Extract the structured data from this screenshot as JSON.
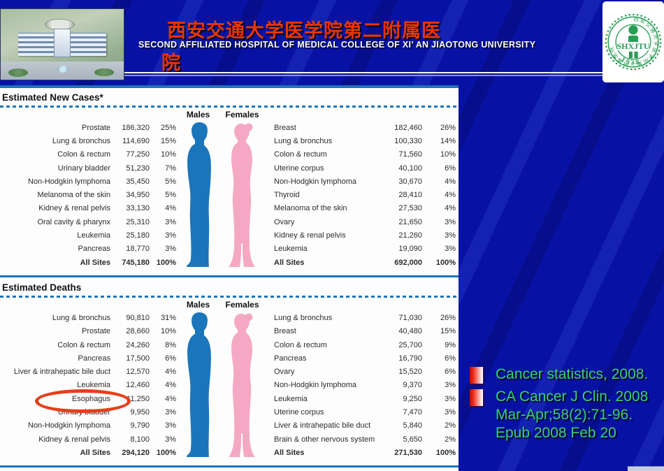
{
  "slide": {
    "header": {
      "title_cn_line1": "西安交通大学医学院第二附属医",
      "title_cn_line2": "院",
      "subtitle_en": "SECOND AFFILIATED HOSPITAL OF MEDICAL COLLEGE OF XI’ AN JIAOTONG UNIVERSITY",
      "logo": {
        "rim_text": "西安交通大学医学院第二附属医院",
        "abbr": "SHXJTU",
        "year": "1938"
      }
    },
    "figure": {
      "sections": [
        {
          "title": "Estimated New Cases*",
          "males_header": "Males",
          "females_header": "Females",
          "males_rows": [
            {
              "site": "Prostate",
              "count": "186,320",
              "pct": "25%"
            },
            {
              "site": "Lung & bronchus",
              "count": "114,690",
              "pct": "15%"
            },
            {
              "site": "Colon & rectum",
              "count": "77,250",
              "pct": "10%"
            },
            {
              "site": "Urinary bladder",
              "count": "51,230",
              "pct": "7%"
            },
            {
              "site": "Non-Hodgkin lymphoma",
              "count": "35,450",
              "pct": "5%"
            },
            {
              "site": "Melanoma of the skin",
              "count": "34,950",
              "pct": "5%"
            },
            {
              "site": "Kidney & renal pelvis",
              "count": "33,130",
              "pct": "4%"
            },
            {
              "site": "Oral cavity & pharynx",
              "count": "25,310",
              "pct": "3%"
            },
            {
              "site": "Leukemia",
              "count": "25,180",
              "pct": "3%"
            },
            {
              "site": "Pancreas",
              "count": "18,770",
              "pct": "3%"
            },
            {
              "site": "All Sites",
              "count": "745,180",
              "pct": "100%",
              "bold": true
            }
          ],
          "females_rows": [
            {
              "site": "Breast",
              "count": "182,460",
              "pct": "26%"
            },
            {
              "site": "Lung & bronchus",
              "count": "100,330",
              "pct": "14%"
            },
            {
              "site": "Colon & rectum",
              "count": "71,560",
              "pct": "10%"
            },
            {
              "site": "Uterine corpus",
              "count": "40,100",
              "pct": "6%"
            },
            {
              "site": "Non-Hodgkin lymphoma",
              "count": "30,670",
              "pct": "4%"
            },
            {
              "site": "Thyroid",
              "count": "28,410",
              "pct": "4%"
            },
            {
              "site": "Melanoma of the skin",
              "count": "27,530",
              "pct": "4%"
            },
            {
              "site": "Ovary",
              "count": "21,650",
              "pct": "3%"
            },
            {
              "site": "Kidney & renal pelvis",
              "count": "21,260",
              "pct": "3%"
            },
            {
              "site": "Leukemia",
              "count": "19,090",
              "pct": "3%"
            },
            {
              "site": "All Sites",
              "count": "692,000",
              "pct": "100%",
              "bold": true
            }
          ]
        },
        {
          "title": "Estimated Deaths",
          "males_header": "Males",
          "females_header": "Females",
          "highlighted_site": "Esophagus",
          "males_rows": [
            {
              "site": "Lung & bronchus",
              "count": "90,810",
              "pct": "31%"
            },
            {
              "site": "Prostate",
              "count": "28,660",
              "pct": "10%"
            },
            {
              "site": "Colon & rectum",
              "count": "24,260",
              "pct": "8%"
            },
            {
              "site": "Pancreas",
              "count": "17,500",
              "pct": "6%"
            },
            {
              "site": "Liver & intrahepatic bile duct",
              "count": "12,570",
              "pct": "4%"
            },
            {
              "site": "Leukemia",
              "count": "12,460",
              "pct": "4%"
            },
            {
              "site": "Esophagus",
              "count": "11,250",
              "pct": "4%"
            },
            {
              "site": "Urinary bladder",
              "count": "9,950",
              "pct": "3%"
            },
            {
              "site": "Non-Hodgkin lymphoma",
              "count": "9,790",
              "pct": "3%"
            },
            {
              "site": "Kidney & renal pelvis",
              "count": "8,100",
              "pct": "3%"
            },
            {
              "site": "All Sites",
              "count": "294,120",
              "pct": "100%",
              "bold": true
            }
          ],
          "females_rows": [
            {
              "site": "Lung & bronchus",
              "count": "71,030",
              "pct": "26%"
            },
            {
              "site": "Breast",
              "count": "40,480",
              "pct": "15%"
            },
            {
              "site": "Colon & rectum",
              "count": "25,700",
              "pct": "9%"
            },
            {
              "site": "Pancreas",
              "count": "16,790",
              "pct": "6%"
            },
            {
              "site": "Ovary",
              "count": "15,520",
              "pct": "6%"
            },
            {
              "site": "Non-Hodgkin lymphoma",
              "count": "9,370",
              "pct": "3%"
            },
            {
              "site": "Leukemia",
              "count": "9,250",
              "pct": "3%"
            },
            {
              "site": "Uterine corpus",
              "count": "7,470",
              "pct": "3%"
            },
            {
              "site": "Liver & intrahepatic bile duct",
              "count": "5,840",
              "pct": "2%"
            },
            {
              "site": "Brain & other nervous system",
              "count": "5,650",
              "pct": "2%"
            },
            {
              "site": "All Sites",
              "count": "271,530",
              "pct": "100%",
              "bold": true
            }
          ]
        }
      ],
      "colors": {
        "male_fill": "#1b75bb",
        "female_fill": "#f5a8c3",
        "rule_blue": "#1b75bb",
        "highlight_ring": "#e5401a"
      }
    },
    "citation": {
      "items": [
        "Cancer statistics, 2008.",
        "CA Cancer J Clin. 2008 Mar-Apr;58(2):71-96. Epub 2008 Feb 20"
      ],
      "text_color": "#3bcf6e"
    }
  }
}
